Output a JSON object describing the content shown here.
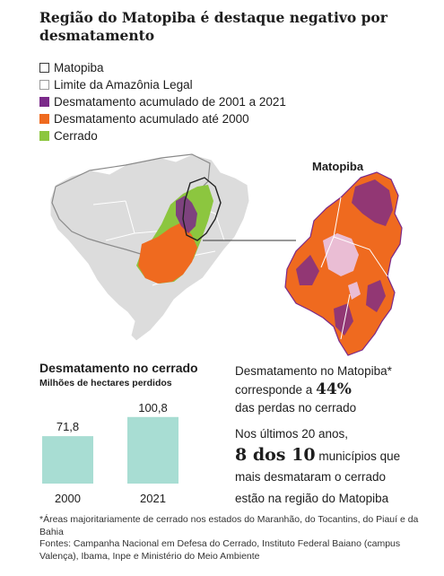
{
  "title": "Região do Matopiba é destaque negativo por desmatamento",
  "legend": [
    {
      "label": "Matopiba",
      "style": "outline",
      "color": "#ffffff"
    },
    {
      "label": "Limite da Amazônia Legal",
      "style": "outline-light",
      "color": "#ffffff"
    },
    {
      "label": "Desmatamento acumulado de 2001 a 2021",
      "style": "fill",
      "color": "#7b2a8a"
    },
    {
      "label": "Desmatamento acumulado até 2000",
      "style": "fill",
      "color": "#ef6a1f"
    },
    {
      "label": "Cerrado",
      "style": "fill",
      "color": "#8cc63f"
    }
  ],
  "map": {
    "inset_label": "Matopiba"
  },
  "chart_data": {
    "type": "bar",
    "title": "Desmatamento no cerrado",
    "subtitle": "Milhões de hectares perdidos",
    "categories": [
      "2000",
      "2021"
    ],
    "values": [
      71.8,
      100.8
    ],
    "value_labels": [
      "71,8",
      "100,8"
    ],
    "ylim": [
      0,
      110
    ],
    "bar_color": "#a8ddd3",
    "grid": false
  },
  "stats": {
    "stat1_pre": "Desmatamento no Matopiba*",
    "stat1_mid": "corresponde a ",
    "stat1_big": "44%",
    "stat1_post": "das perdas no cerrado",
    "stat2_pre": "Nos últimos 20 anos,",
    "stat2_big1": "8",
    "stat2_mid": " dos ",
    "stat2_big2": "10",
    "stat2_post1": " municípios que",
    "stat2_post2": "mais desmataram o cerrado",
    "stat2_post3": "estão na região do Matopiba"
  },
  "footnote": {
    "line1": "*Áreas majoritariamente de cerrado nos estados do Maranhão, do Tocantins, do Piauí e da Bahia",
    "line2": "Fontes: Campanha Nacional em Defesa do Cerrado, Instituto Federal Baiano (campus Valença), Ibama, Inpe e Ministério do Meio Ambiente"
  }
}
